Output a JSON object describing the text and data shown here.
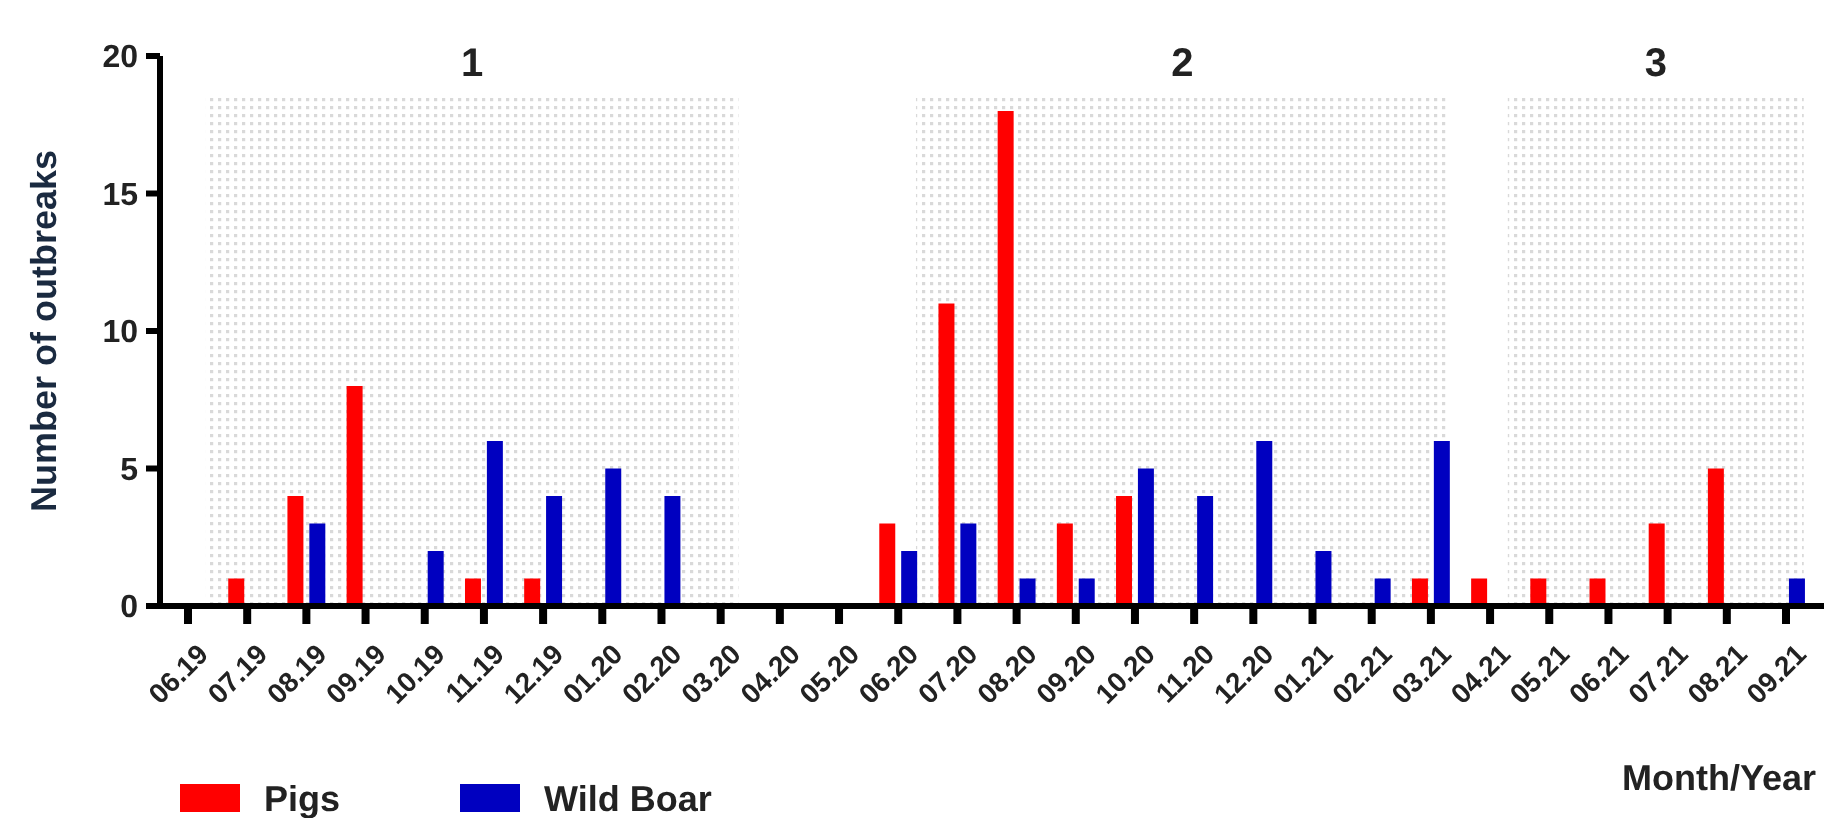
{
  "chart_data": {
    "type": "bar",
    "ylabel": "Number of outbreaks",
    "xlabel": "Month/Year",
    "categories": [
      "06.19",
      "07.19",
      "08.19",
      "09.19",
      "10.19",
      "11.19",
      "12.19",
      "01.20",
      "02.20",
      "03.20",
      "04.20",
      "05.20",
      "06.20",
      "07.20",
      "08.20",
      "09.20",
      "10.20",
      "11.20",
      "12.20",
      "01.21",
      "02.21",
      "03.21",
      "04.21",
      "05.21",
      "06.21",
      "07.21",
      "08.21",
      "09.21"
    ],
    "series": [
      {
        "name": "Pigs",
        "color": "#ff0000",
        "values": [
          0,
          1,
          4,
          8,
          0,
          1,
          1,
          0,
          0,
          0,
          0,
          0,
          3,
          11,
          18,
          3,
          4,
          0,
          0,
          0,
          0,
          1,
          1,
          1,
          1,
          3,
          5,
          0
        ]
      },
      {
        "name": "Wild Boar",
        "color": "#0000c0",
        "values": [
          0,
          0,
          3,
          0,
          2,
          6,
          4,
          5,
          4,
          0,
          0,
          0,
          2,
          3,
          1,
          1,
          5,
          4,
          6,
          2,
          1,
          6,
          0,
          0,
          0,
          0,
          0,
          1
        ]
      }
    ],
    "ylim": [
      0,
      20
    ],
    "yticks": [
      0,
      5,
      10,
      15,
      20
    ],
    "grid": false,
    "legend": "bottom left",
    "bands": [
      {
        "axis": "x",
        "from": "06.19",
        "to": "03.20",
        "label": "1",
        "color": "#d9d9d9"
      },
      {
        "axis": "x",
        "from": "06.20",
        "to": "03.21",
        "label": "2",
        "color": "#d9d9d9"
      },
      {
        "axis": "x",
        "from": "04.21",
        "to": "09.21",
        "label": "3",
        "color": "#d9d9d9"
      }
    ]
  }
}
